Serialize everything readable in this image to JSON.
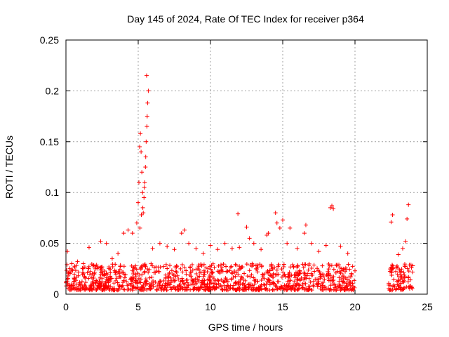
{
  "chart_data": {
    "type": "scatter",
    "title": "Day 145 of 2024, Rate Of TEC Index for receiver p364",
    "xlabel": "GPS time / hours",
    "ylabel": "ROTI / TECUs",
    "xlim": [
      0,
      25
    ],
    "ylim": [
      0,
      0.25
    ],
    "xticks": [
      "0",
      "5",
      "10",
      "15",
      "20",
      "25"
    ],
    "yticks": [
      "0",
      "0.05",
      "0.1",
      "0.15",
      "0.2",
      "0.25"
    ],
    "grid": true,
    "marker": "plus",
    "color": "#ff0000",
    "x": [
      0.1,
      0.4,
      0.8,
      1.2,
      1.6,
      2.0,
      2.4,
      2.8,
      3.2,
      3.6,
      4.0,
      4.3,
      4.6,
      4.9,
      5.0,
      5.05,
      5.1,
      5.15,
      5.2,
      5.25,
      5.3,
      5.35,
      5.4,
      5.45,
      5.5,
      5.55,
      5.6,
      5.65,
      5.7,
      5.58,
      5.62,
      5.52,
      5.42,
      5.32,
      5.22,
      5.12,
      6.0,
      6.5,
      7.0,
      7.5,
      8.0,
      8.2,
      8.5,
      9.0,
      9.5,
      10.0,
      10.5,
      11.0,
      11.5,
      11.9,
      12.0,
      12.5,
      12.7,
      13.0,
      13.5,
      13.9,
      14.0,
      14.5,
      14.6,
      14.8,
      15.0,
      15.3,
      15.5,
      16.0,
      16.5,
      16.6,
      17.0,
      17.5,
      18.0,
      18.3,
      18.4,
      18.5,
      19.0,
      19.5,
      20.0,
      22.5,
      22.6,
      23.0,
      23.3,
      23.5,
      23.6,
      23.7,
      24.0
    ],
    "y": [
      0.042,
      0.03,
      0.032,
      0.03,
      0.046,
      0.028,
      0.052,
      0.05,
      0.035,
      0.04,
      0.06,
      0.063,
      0.06,
      0.07,
      0.09,
      0.11,
      0.145,
      0.158,
      0.14,
      0.12,
      0.1,
      0.08,
      0.095,
      0.11,
      0.125,
      0.15,
      0.165,
      0.188,
      0.2,
      0.215,
      0.175,
      0.135,
      0.105,
      0.085,
      0.078,
      0.065,
      0.045,
      0.05,
      0.047,
      0.044,
      0.06,
      0.063,
      0.05,
      0.045,
      0.04,
      0.048,
      0.044,
      0.05,
      0.045,
      0.079,
      0.046,
      0.066,
      0.055,
      0.05,
      0.044,
      0.058,
      0.06,
      0.08,
      0.07,
      0.065,
      0.073,
      0.05,
      0.065,
      0.045,
      0.06,
      0.068,
      0.05,
      0.042,
      0.048,
      0.085,
      0.087,
      0.084,
      0.047,
      0.04,
      0.023,
      0.071,
      0.078,
      0.039,
      0.045,
      0.052,
      0.074,
      0.088,
      0.028
    ],
    "band_segments": [
      {
        "from": 0.0,
        "to": 20.0,
        "low": 0.004,
        "high": 0.03
      },
      {
        "from": 22.3,
        "to": 24.0,
        "low": 0.004,
        "high": 0.03
      }
    ]
  }
}
